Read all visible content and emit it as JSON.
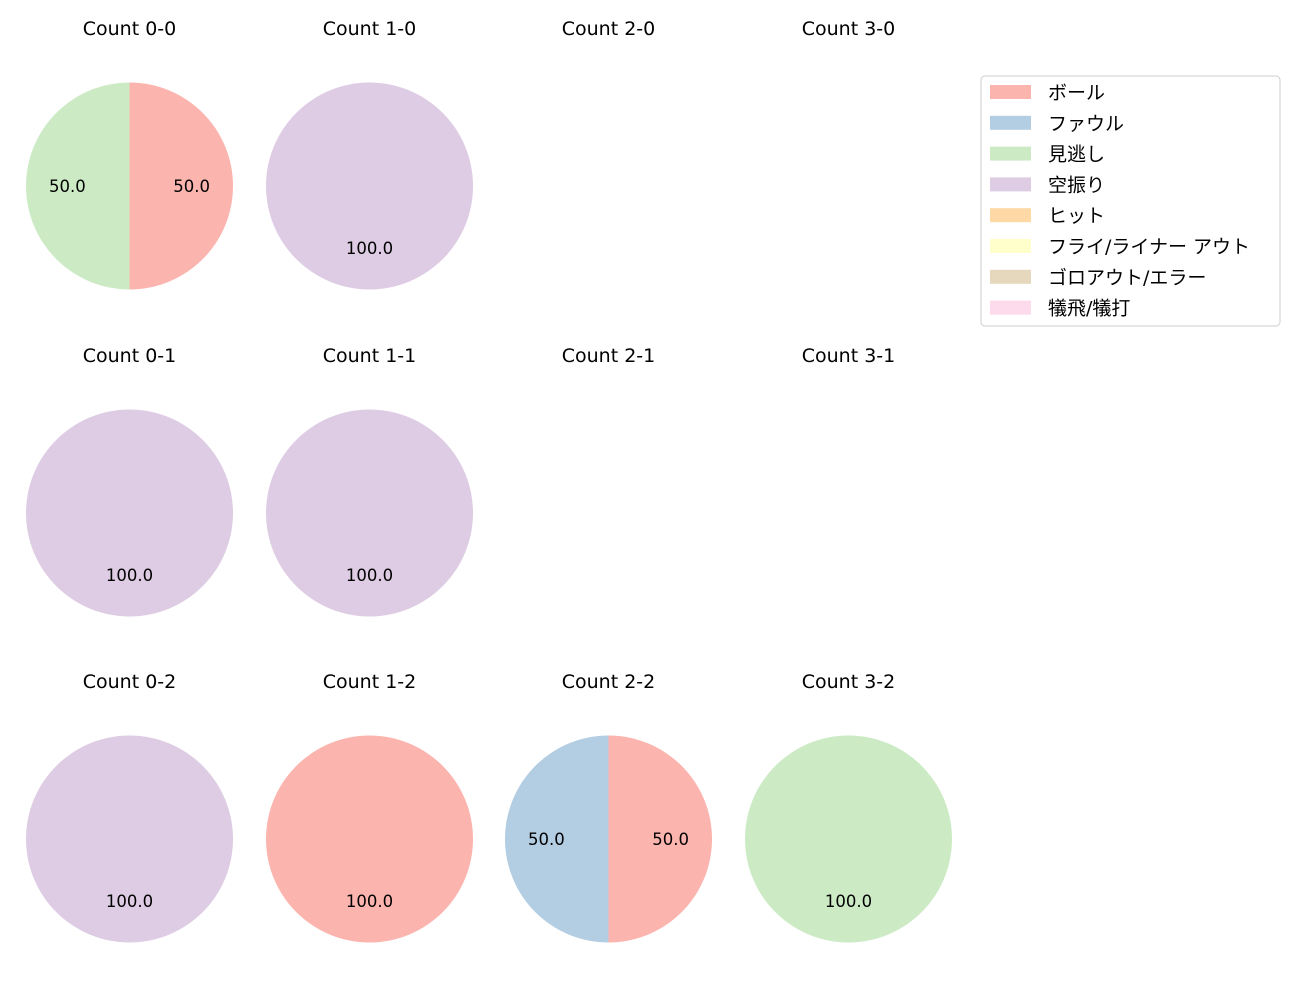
{
  "chart_data": {
    "type": "pie",
    "legend": {
      "placement": "top-right",
      "entries": [
        {
          "label": "ボール",
          "color": "#fbb4ae"
        },
        {
          "label": "ファウル",
          "color": "#b3cde3"
        },
        {
          "label": "見逃し",
          "color": "#ccebc5"
        },
        {
          "label": "空振り",
          "color": "#decbe4"
        },
        {
          "label": "ヒット",
          "color": "#fed9a6"
        },
        {
          "label": "フライ/ライナー アウト",
          "color": "#ffffcc"
        },
        {
          "label": "ゴロアウト/エラー",
          "color": "#e5d8bd"
        },
        {
          "label": "犠飛/犠打",
          "color": "#fddaec"
        }
      ]
    },
    "grid": {
      "rows": 3,
      "cols": 4
    },
    "charts": [
      {
        "title": "Count 0-0",
        "row": 0,
        "col": 0,
        "slices": [
          {
            "label": "ボール",
            "value": 50.0
          },
          {
            "label": "見逃し",
            "value": 50.0
          }
        ]
      },
      {
        "title": "Count 1-0",
        "row": 0,
        "col": 1,
        "slices": [
          {
            "label": "空振り",
            "value": 100.0
          }
        ]
      },
      {
        "title": "Count 2-0",
        "row": 0,
        "col": 2,
        "slices": []
      },
      {
        "title": "Count 3-0",
        "row": 0,
        "col": 3,
        "slices": []
      },
      {
        "title": "Count 0-1",
        "row": 1,
        "col": 0,
        "slices": [
          {
            "label": "空振り",
            "value": 100.0
          }
        ]
      },
      {
        "title": "Count 1-1",
        "row": 1,
        "col": 1,
        "slices": [
          {
            "label": "空振り",
            "value": 100.0
          }
        ]
      },
      {
        "title": "Count 2-1",
        "row": 1,
        "col": 2,
        "slices": []
      },
      {
        "title": "Count 3-1",
        "row": 1,
        "col": 3,
        "slices": []
      },
      {
        "title": "Count 0-2",
        "row": 2,
        "col": 0,
        "slices": [
          {
            "label": "空振り",
            "value": 100.0
          }
        ]
      },
      {
        "title": "Count 1-2",
        "row": 2,
        "col": 1,
        "slices": [
          {
            "label": "ボール",
            "value": 100.0
          }
        ]
      },
      {
        "title": "Count 2-2",
        "row": 2,
        "col": 2,
        "slices": [
          {
            "label": "ボール",
            "value": 50.0
          },
          {
            "label": "ファウル",
            "value": 50.0
          }
        ]
      },
      {
        "title": "Count 3-2",
        "row": 2,
        "col": 3,
        "slices": [
          {
            "label": "見逃し",
            "value": 100.0
          }
        ]
      }
    ]
  }
}
